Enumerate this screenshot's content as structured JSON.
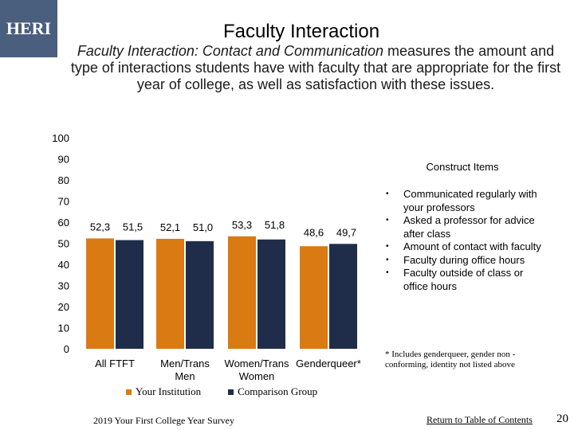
{
  "logo": {
    "text": "HERI"
  },
  "header": {
    "title": "Faculty Interaction",
    "subtitle_italic": "Faculty Interaction: Contact and Communication",
    "subtitle_rest": " measures the amount and type of interactions students have with faculty that are appropriate for the first year of college, as well as satisfaction with these issues."
  },
  "construct": {
    "title": "Construct Items",
    "items": [
      "Communicated regularly with your professors",
      "Asked a professor for advice after class",
      "Amount of contact with faculty",
      "Faculty during office hours",
      "Faculty outside of class or office hours"
    ]
  },
  "footnote": "* Includes genderqueer, gender non - conforming, identity not listed above",
  "legend": {
    "institution": "Your Institution",
    "comparison": "Comparison Group"
  },
  "footer": {
    "survey": "2019 Your First College Year Survey",
    "link": "Return to Table of Contents",
    "page": "20"
  },
  "colors": {
    "institution": "#d97a12",
    "comparison": "#1f2d4a"
  },
  "chart_data": {
    "type": "bar",
    "title": "Faculty Interaction",
    "categories": [
      [
        "All FTFT"
      ],
      [
        "Men/Trans",
        "Men"
      ],
      [
        "Women/Trans",
        "Women"
      ],
      [
        "Genderqueer*"
      ]
    ],
    "series": [
      {
        "name": "Your Institution",
        "values": [
          52.3,
          52.1,
          53.3,
          48.6
        ],
        "labels": [
          "52,3",
          "52,1",
          "53,3",
          "48,6"
        ]
      },
      {
        "name": "Comparison Group",
        "values": [
          51.5,
          51.0,
          51.8,
          49.7
        ],
        "labels": [
          "51,5",
          "51,0",
          "51,8",
          "49,7"
        ]
      }
    ],
    "yticks": [
      "100",
      "90",
      "80",
      "70",
      "60",
      "50",
      "40",
      "30",
      "20",
      "10",
      "0"
    ],
    "ylim": [
      0,
      100
    ],
    "legend_position": "bottom"
  }
}
